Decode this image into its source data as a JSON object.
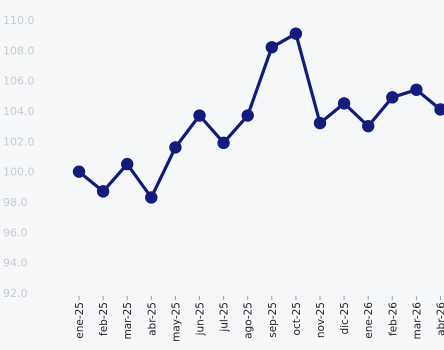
{
  "chart_data": {
    "type": "line",
    "x": [
      "ene-25",
      "feb-25",
      "mar-25",
      "abr-25",
      "may-25",
      "jun-25",
      "jul-25",
      "ago-25",
      "sep-25",
      "oct-25",
      "nov-25",
      "dic-25",
      "ene-26",
      "feb-26",
      "mar-26",
      "abr-26"
    ],
    "series": [
      {
        "values": [
          100.0,
          98.7,
          100.5,
          98.3,
          101.6,
          103.7,
          101.9,
          103.7,
          108.2,
          109.1,
          103.2,
          104.5,
          103.0,
          104.9,
          105.4,
          104.1
        ]
      }
    ],
    "y_ticks": [
      "110.0",
      "108.0",
      "106.0",
      "104.0",
      "102.0",
      "100.0",
      "98.0",
      "96.0",
      "94.0",
      "92.0"
    ],
    "ylim": [
      92,
      110
    ],
    "grid": false,
    "colors": {
      "line": "#131c7a",
      "marker": "#131c7a"
    }
  }
}
